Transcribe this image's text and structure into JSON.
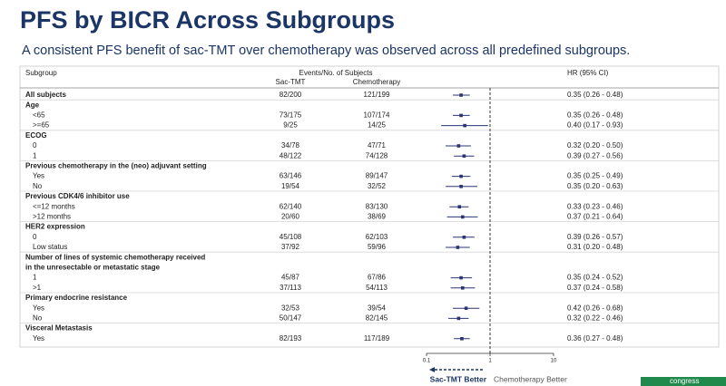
{
  "title": "PFS by BICR Across Subgroups",
  "subtitle": "A consistent PFS benefit of sac-TMT over chemotherapy was observed across all predefined subgroups.",
  "footer_logo": "congress",
  "chart_data": {
    "type": "forest",
    "columns": {
      "subgroup": "Subgroup",
      "events": "Events/No. of Subjects",
      "sac_tmt": "Sac-TMT",
      "chemo": "Chemotherapy",
      "hr": "HR (95% CI)"
    },
    "groups": [
      {
        "name": "All subjects",
        "sac_tmt": "82/200",
        "chemo": "121/199",
        "hr": 0.35,
        "ci": [
          0.26,
          0.48
        ],
        "hr_label": "0.35 (0.26 - 0.48)"
      },
      {
        "name": "Age",
        "rows": [
          {
            "label": "<65",
            "sac_tmt": "73/175",
            "chemo": "107/174",
            "hr": 0.35,
            "ci": [
              0.26,
              0.48
            ],
            "hr_label": "0.35 (0.26 - 0.48)"
          },
          {
            "label": ">=65",
            "sac_tmt": "9/25",
            "chemo": "14/25",
            "hr": 0.4,
            "ci": [
              0.17,
              0.93
            ],
            "hr_label": "0.40 (0.17 - 0.93)"
          }
        ]
      },
      {
        "name": "ECOG",
        "rows": [
          {
            "label": "0",
            "sac_tmt": "34/78",
            "chemo": "47/71",
            "hr": 0.32,
            "ci": [
              0.2,
              0.5
            ],
            "hr_label": "0.32 (0.20 - 0.50)"
          },
          {
            "label": "1",
            "sac_tmt": "48/122",
            "chemo": "74/128",
            "hr": 0.39,
            "ci": [
              0.27,
              0.56
            ],
            "hr_label": "0.39 (0.27 - 0.56)"
          }
        ]
      },
      {
        "name": "Previous chemotherapy in the (neo) adjuvant setting",
        "rows": [
          {
            "label": "Yes",
            "sac_tmt": "63/146",
            "chemo": "89/147",
            "hr": 0.35,
            "ci": [
              0.25,
              0.49
            ],
            "hr_label": "0.35 (0.25 - 0.49)"
          },
          {
            "label": "No",
            "sac_tmt": "19/54",
            "chemo": "32/52",
            "hr": 0.35,
            "ci": [
              0.2,
              0.63
            ],
            "hr_label": "0.35 (0.20 - 0.63)"
          }
        ]
      },
      {
        "name": "Previous CDK4/6 inhibitor use",
        "rows": [
          {
            "label": "<=12 months",
            "sac_tmt": "62/140",
            "chemo": "83/130",
            "hr": 0.33,
            "ci": [
              0.23,
              0.46
            ],
            "hr_label": "0.33 (0.23 - 0.46)"
          },
          {
            "label": ">12 months",
            "sac_tmt": "20/60",
            "chemo": "38/69",
            "hr": 0.37,
            "ci": [
              0.21,
              0.64
            ],
            "hr_label": "0.37 (0.21 - 0.64)"
          }
        ]
      },
      {
        "name": "HER2 expression",
        "rows": [
          {
            "label": "0",
            "sac_tmt": "45/108",
            "chemo": "62/103",
            "hr": 0.39,
            "ci": [
              0.26,
              0.57
            ],
            "hr_label": "0.39 (0.26 - 0.57)"
          },
          {
            "label": "Low status",
            "sac_tmt": "37/92",
            "chemo": "59/96",
            "hr": 0.31,
            "ci": [
              0.2,
              0.48
            ],
            "hr_label": "0.31 (0.20 - 0.48)"
          }
        ]
      },
      {
        "name": [
          "Number of lines of systemic chemotherapy received",
          "in the unresectable or metastatic stage"
        ],
        "rows": [
          {
            "label": "1",
            "sac_tmt": "45/87",
            "chemo": "67/86",
            "hr": 0.35,
            "ci": [
              0.24,
              0.52
            ],
            "hr_label": "0.35 (0.24 - 0.52)"
          },
          {
            "label": ">1",
            "sac_tmt": "37/113",
            "chemo": "54/113",
            "hr": 0.37,
            "ci": [
              0.24,
              0.58
            ],
            "hr_label": "0.37 (0.24 - 0.58)"
          }
        ]
      },
      {
        "name": "Primary endocrine resistance",
        "rows": [
          {
            "label": "Yes",
            "sac_tmt": "32/53",
            "chemo": "39/54",
            "hr": 0.42,
            "ci": [
              0.26,
              0.68
            ],
            "hr_label": "0.42 (0.26 - 0.68)"
          },
          {
            "label": "No",
            "sac_tmt": "50/147",
            "chemo": "82/145",
            "hr": 0.32,
            "ci": [
              0.22,
              0.46
            ],
            "hr_label": "0.32 (0.22 - 0.46)"
          }
        ]
      },
      {
        "name": "Visceral Metastasis",
        "rows": [
          {
            "label": "Yes",
            "sac_tmt": "82/193",
            "chemo": "117/189",
            "hr": 0.36,
            "ci": [
              0.27,
              0.48
            ],
            "hr_label": "0.36 (0.27 - 0.48)"
          }
        ]
      }
    ],
    "xlim": [
      0.1,
      10
    ],
    "xticks": [
      0.1,
      1,
      10
    ],
    "log_x": true,
    "ref_line": 1,
    "favors": {
      "left": "Sac-TMT Better",
      "right": "Chemotherapy Better"
    },
    "color": "#2a3470"
  }
}
